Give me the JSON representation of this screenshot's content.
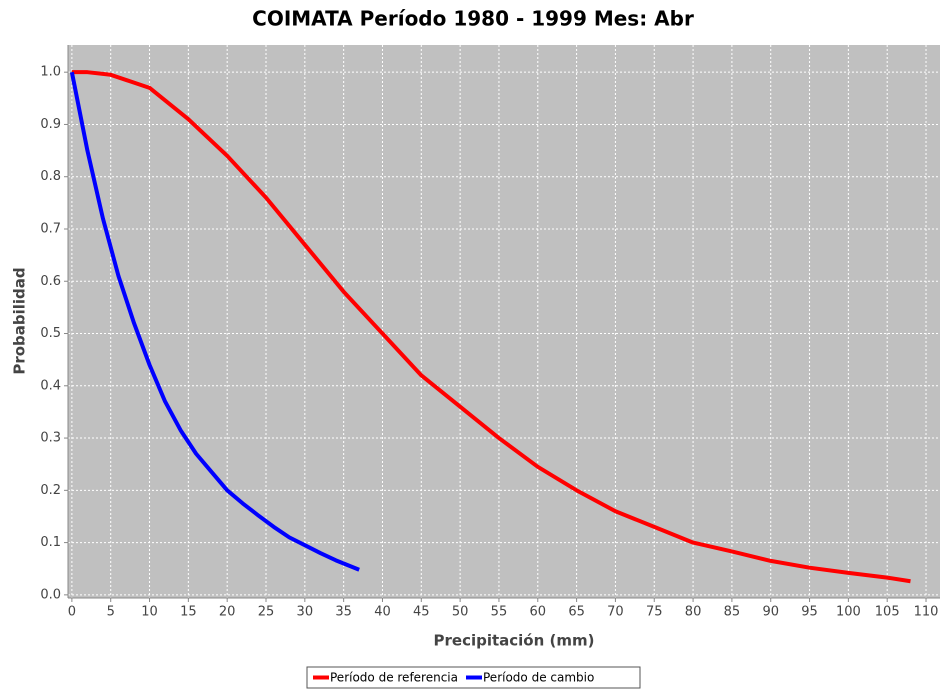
{
  "chart_data": {
    "type": "line",
    "title": "COIMATA Período 1980 - 1999  Mes: Abr",
    "x_label": "Precipitación (mm)",
    "y_label": "Probabilidad",
    "xlim": [
      -0.5,
      111.8
    ],
    "ylim": [
      -0.006,
      1.052
    ],
    "xticks": [
      0,
      5,
      10,
      15,
      20,
      25,
      30,
      35,
      40,
      45,
      50,
      55,
      60,
      65,
      70,
      75,
      80,
      85,
      90,
      95,
      100,
      105,
      110
    ],
    "yticks": [
      {
        "value": 0,
        "label": "0.0"
      },
      0.1,
      0.2,
      0.3,
      0.4,
      0.5,
      0.6,
      0.7,
      0.8,
      0.9,
      {
        "value": 1,
        "label": "1.0"
      }
    ],
    "grid": true,
    "legend": "bottom",
    "series": [
      {
        "name": "Período de referencia",
        "color": "#ff0000",
        "x": [
          0,
          2,
          5,
          8,
          10,
          15,
          20,
          25,
          30,
          35,
          40,
          45,
          50,
          55,
          60,
          65,
          70,
          75,
          80,
          85,
          90,
          95,
          100,
          105,
          108
        ],
        "values": [
          1.0,
          1.0,
          0.995,
          0.98,
          0.97,
          0.91,
          0.84,
          0.76,
          0.67,
          0.58,
          0.5,
          0.42,
          0.36,
          0.3,
          0.245,
          0.2,
          0.16,
          0.13,
          0.1,
          0.083,
          0.065,
          0.052,
          0.042,
          0.033,
          0.026
        ]
      },
      {
        "name": "Período de cambio",
        "color": "#0000ff",
        "x": [
          0,
          2,
          4,
          6,
          8,
          10,
          12,
          14,
          16,
          18,
          20,
          22,
          24,
          26,
          28,
          30,
          32,
          34,
          37
        ],
        "values": [
          1.0,
          0.85,
          0.72,
          0.61,
          0.52,
          0.44,
          0.37,
          0.315,
          0.27,
          0.235,
          0.2,
          0.175,
          0.152,
          0.13,
          0.11,
          0.095,
          0.08,
          0.066,
          0.048
        ]
      }
    ]
  }
}
